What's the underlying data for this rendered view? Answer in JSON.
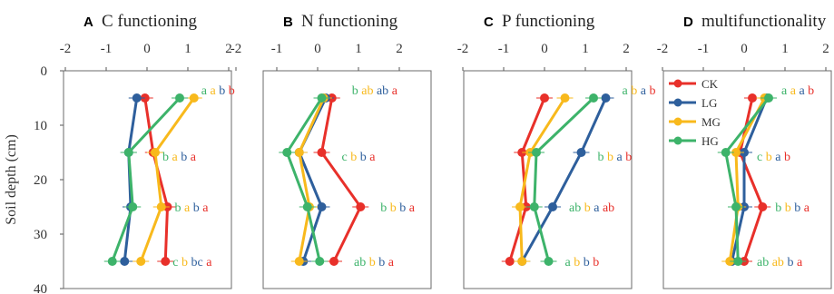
{
  "chart_data": {
    "type": "line",
    "ylabel": "Soil depth (cm)",
    "y_ticks": [
      "0",
      "10",
      "20",
      "30",
      "40"
    ],
    "x_ticks": [
      "-2",
      "-1",
      "0",
      "1",
      "2"
    ],
    "xlim": [
      -2,
      2
    ],
    "ylim": [
      0,
      40
    ],
    "depths": [
      5,
      15,
      25,
      35
    ],
    "colors": {
      "CK": "#e8302a",
      "LG": "#2e5f9c",
      "MG": "#f8b91c",
      "HG": "#3db36a"
    },
    "series_order": [
      "CK",
      "LG",
      "MG",
      "HG"
    ],
    "legend": {
      "position": "top-left",
      "entries": [
        "CK",
        "LG",
        "MG",
        "HG"
      ]
    },
    "panels": [
      {
        "letter": "A",
        "title": "C functioning",
        "series": {
          "CK": [
            -0.05,
            0.15,
            0.5,
            0.45
          ],
          "LG": [
            -0.25,
            -0.45,
            -0.4,
            -0.55
          ],
          "MG": [
            1.15,
            0.2,
            0.35,
            -0.15
          ],
          "HG": [
            0.8,
            -0.45,
            -0.35,
            -0.85
          ]
        },
        "sig_letters": [
          [
            [
              "a",
              "HG"
            ],
            [
              "a",
              "MG"
            ],
            [
              "b",
              "LG"
            ],
            [
              "b",
              "CK"
            ]
          ],
          [
            [
              "b",
              "HG"
            ],
            [
              "a",
              "MG"
            ],
            [
              "b",
              "LG"
            ],
            [
              "a",
              "CK"
            ]
          ],
          [
            [
              "b",
              "HG"
            ],
            [
              "a",
              "MG"
            ],
            [
              "b",
              "LG"
            ],
            [
              "a",
              "CK"
            ]
          ],
          [
            [
              "c",
              "HG"
            ],
            [
              "b",
              "MG"
            ],
            [
              "bc",
              "LG"
            ],
            [
              "a",
              "CK"
            ]
          ]
        ]
      },
      {
        "letter": "B",
        "title": "N functioning",
        "series": {
          "CK": [
            0.35,
            0.1,
            1.05,
            0.4
          ],
          "LG": [
            0.2,
            -0.45,
            0.1,
            -0.35
          ],
          "MG": [
            0.15,
            -0.45,
            -0.2,
            -0.45
          ],
          "HG": [
            0.1,
            -0.75,
            -0.25,
            0.05
          ]
        },
        "sig_letters": [
          [
            [
              "b",
              "HG"
            ],
            [
              "ab",
              "MG"
            ],
            [
              "ab",
              "LG"
            ],
            [
              "a",
              "CK"
            ]
          ],
          [
            [
              "c",
              "HG"
            ],
            [
              "b",
              "MG"
            ],
            [
              "b",
              "LG"
            ],
            [
              "a",
              "CK"
            ]
          ],
          [
            [
              "b",
              "HG"
            ],
            [
              "b",
              "MG"
            ],
            [
              "b",
              "LG"
            ],
            [
              "a",
              "CK"
            ]
          ],
          [
            [
              "ab",
              "HG"
            ],
            [
              "b",
              "MG"
            ],
            [
              "b",
              "LG"
            ],
            [
              "a",
              "CK"
            ]
          ]
        ]
      },
      {
        "letter": "C",
        "title": "P functioning",
        "series": {
          "CK": [
            0.0,
            -0.55,
            -0.45,
            -0.85
          ],
          "LG": [
            1.5,
            0.9,
            0.2,
            -0.55
          ],
          "MG": [
            0.5,
            -0.35,
            -0.6,
            -0.55
          ],
          "HG": [
            1.2,
            -0.2,
            -0.25,
            0.1
          ]
        },
        "sig_letters": [
          [
            [
              "a",
              "HG"
            ],
            [
              "b",
              "MG"
            ],
            [
              "a",
              "LG"
            ],
            [
              "b",
              "CK"
            ]
          ],
          [
            [
              "b",
              "HG"
            ],
            [
              "b",
              "MG"
            ],
            [
              "a",
              "LG"
            ],
            [
              "b",
              "CK"
            ]
          ],
          [
            [
              "ab",
              "HG"
            ],
            [
              "b",
              "MG"
            ],
            [
              "a",
              "LG"
            ],
            [
              "ab",
              "CK"
            ]
          ],
          [
            [
              "a",
              "HG"
            ],
            [
              "b",
              "MG"
            ],
            [
              "b",
              "LG"
            ],
            [
              "b",
              "CK"
            ]
          ]
        ]
      },
      {
        "letter": "D",
        "title": "multifunctionality",
        "series": {
          "CK": [
            0.2,
            -0.1,
            0.45,
            0.0
          ],
          "LG": [
            0.55,
            0.0,
            0.0,
            -0.3
          ],
          "MG": [
            0.5,
            -0.2,
            -0.15,
            -0.35
          ],
          "HG": [
            0.6,
            -0.45,
            -0.2,
            -0.15
          ]
        },
        "sig_letters": [
          [
            [
              "a",
              "HG"
            ],
            [
              "a",
              "MG"
            ],
            [
              "a",
              "LG"
            ],
            [
              "b",
              "CK"
            ]
          ],
          [
            [
              "c",
              "HG"
            ],
            [
              "b",
              "MG"
            ],
            [
              "a",
              "LG"
            ],
            [
              "b",
              "CK"
            ]
          ],
          [
            [
              "b",
              "HG"
            ],
            [
              "b",
              "MG"
            ],
            [
              "b",
              "LG"
            ],
            [
              "a",
              "CK"
            ]
          ],
          [
            [
              "ab",
              "HG"
            ],
            [
              "ab",
              "MG"
            ],
            [
              "b",
              "LG"
            ],
            [
              "a",
              "CK"
            ]
          ]
        ]
      }
    ]
  }
}
